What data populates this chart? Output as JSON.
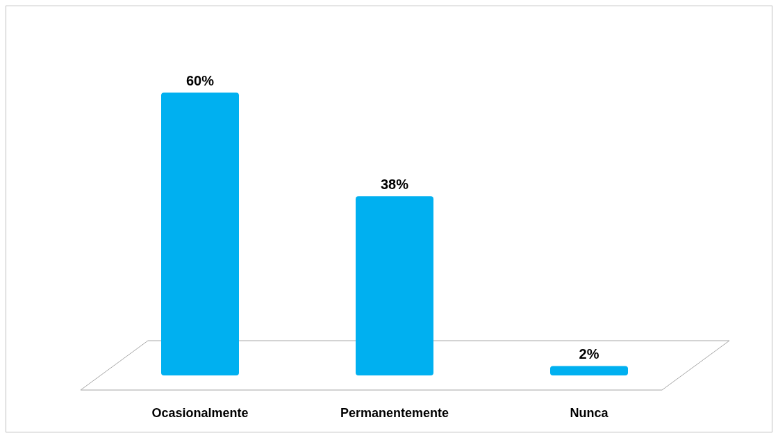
{
  "chart_data": {
    "type": "bar",
    "categories": [
      "Ocasionalmente",
      "Permanentemente",
      "Nunca"
    ],
    "values": [
      60,
      38,
      2
    ],
    "value_labels": [
      "60%",
      "38%",
      "2%"
    ],
    "color": "#00b0f0"
  }
}
